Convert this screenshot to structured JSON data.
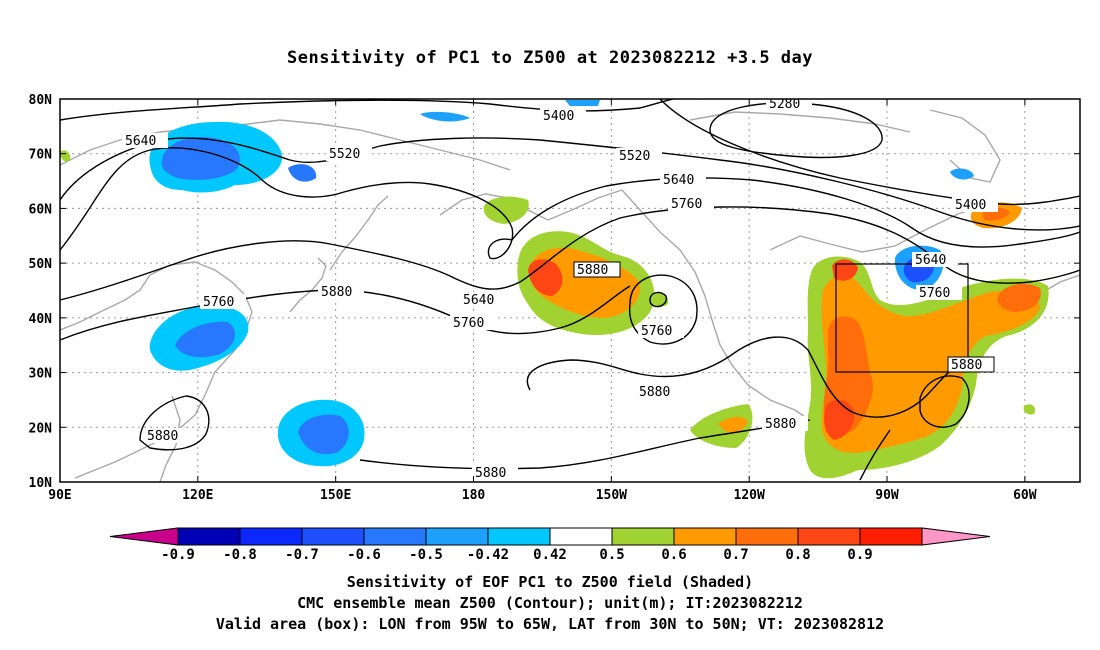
{
  "title": "Sensitivity of PC1 to Z500 at 2023082212 +3.5 day",
  "map": {
    "lat_labels": [
      "80N",
      "70N",
      "60N",
      "50N",
      "40N",
      "30N",
      "20N",
      "10N"
    ],
    "lon_labels": [
      "90E",
      "120E",
      "150E",
      "180",
      "150W",
      "120W",
      "90W",
      "60W"
    ],
    "contour_labels": [
      "5640",
      "5520",
      "5400",
      "5280",
      "5520",
      "5640",
      "5760",
      "5400",
      "5760",
      "5880",
      "5640",
      "5760",
      "5880",
      "5760",
      "5640",
      "5760",
      "5880",
      "5880",
      "5880",
      "5880",
      "5880"
    ],
    "box": {
      "lon_from": "95W",
      "lon_to": "65W",
      "lat_from": "30N",
      "lat_to": "50N"
    }
  },
  "colorbar": {
    "labels": [
      "-0.9",
      "-0.8",
      "-0.7",
      "-0.6",
      "-0.5",
      "-0.42",
      "0.42",
      "0.5",
      "0.6",
      "0.7",
      "0.8",
      "0.9"
    ],
    "colors": [
      "#c8008c",
      "#0000b4",
      "#0a28ff",
      "#1e50ff",
      "#2878ff",
      "#1ea0ff",
      "#00c8ff",
      "#ffffff",
      "#a0d232",
      "#ff9b00",
      "#ff6e0a",
      "#ff4614",
      "#ff1e00",
      "#ff96c8"
    ]
  },
  "captions": {
    "line1": "Sensitivity of EOF PC1 to Z500 field (Shaded)",
    "line2": "CMC ensemble mean Z500 (Contour); unit(m); IT:2023082212",
    "line3": "Valid area (box): LON from 95W to 65W, LAT from 30N to 50N; VT: 2023082812"
  }
}
